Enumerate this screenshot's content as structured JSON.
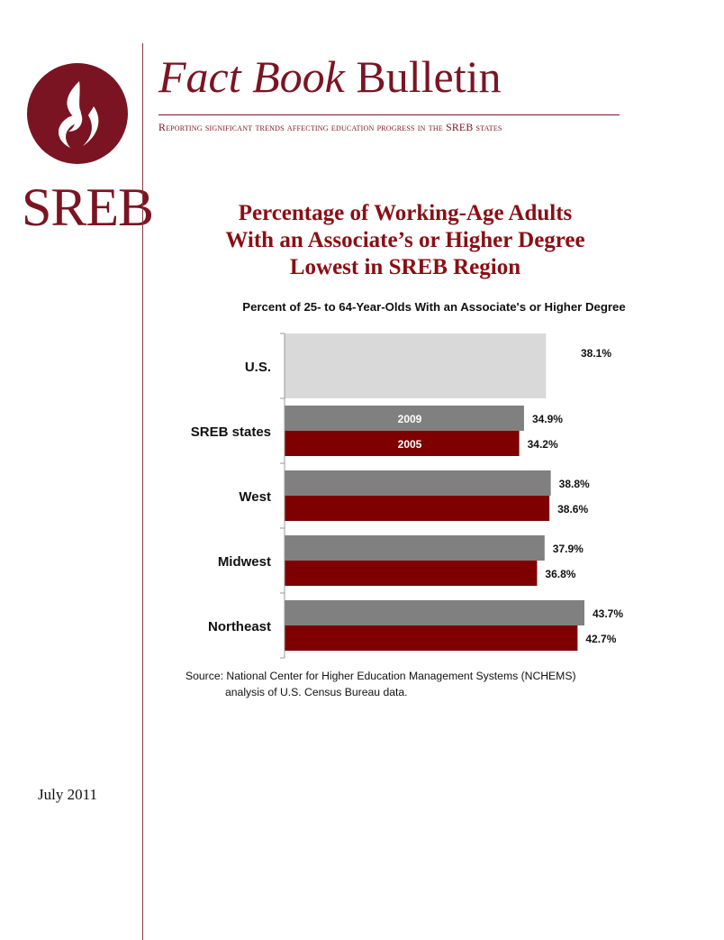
{
  "brand": {
    "name": "SREB",
    "colors": {
      "primary": "#7b1422"
    }
  },
  "header": {
    "title_italic": "Fact Book",
    "title_rest": "Bulletin",
    "tagline": "Reporting significant trends affecting education progress in the SREB states"
  },
  "main_title": {
    "line1": "Percentage of Working-Age Adults",
    "line2": "With an Associate’s or Higher Degree",
    "line3": "Lowest in SREB Region"
  },
  "chart_data": {
    "type": "bar",
    "orientation": "horizontal",
    "title": "Percent of 25- to 64-Year-Olds With an Associate's or Higher Degree",
    "categories": [
      "U.S.",
      "SREB states",
      "West",
      "Midwest",
      "Northeast"
    ],
    "series": [
      {
        "name": "2009",
        "color": "#808080",
        "values": [
          38.1,
          34.9,
          38.8,
          37.9,
          43.7
        ]
      },
      {
        "name": "2005",
        "color": "#7f0000",
        "values": [
          null,
          34.2,
          38.6,
          36.8,
          42.7
        ]
      }
    ],
    "labels": {
      "2009": [
        "38.1%",
        "34.9%",
        "38.8%",
        "37.9%",
        "43.7%"
      ],
      "2005": [
        "",
        "34.2%",
        "38.6%",
        "36.8%",
        "42.7%"
      ]
    },
    "us_band_color": "#d9d9d9",
    "xlim": [
      0,
      45
    ],
    "legend": "inline on SREB states bars",
    "grid": false
  },
  "source": {
    "line1": "Source: National Center for Higher Education Management Systems (NCHEMS)",
    "line2": "analysis of U.S. Census Bureau data."
  },
  "date": "July 2011"
}
